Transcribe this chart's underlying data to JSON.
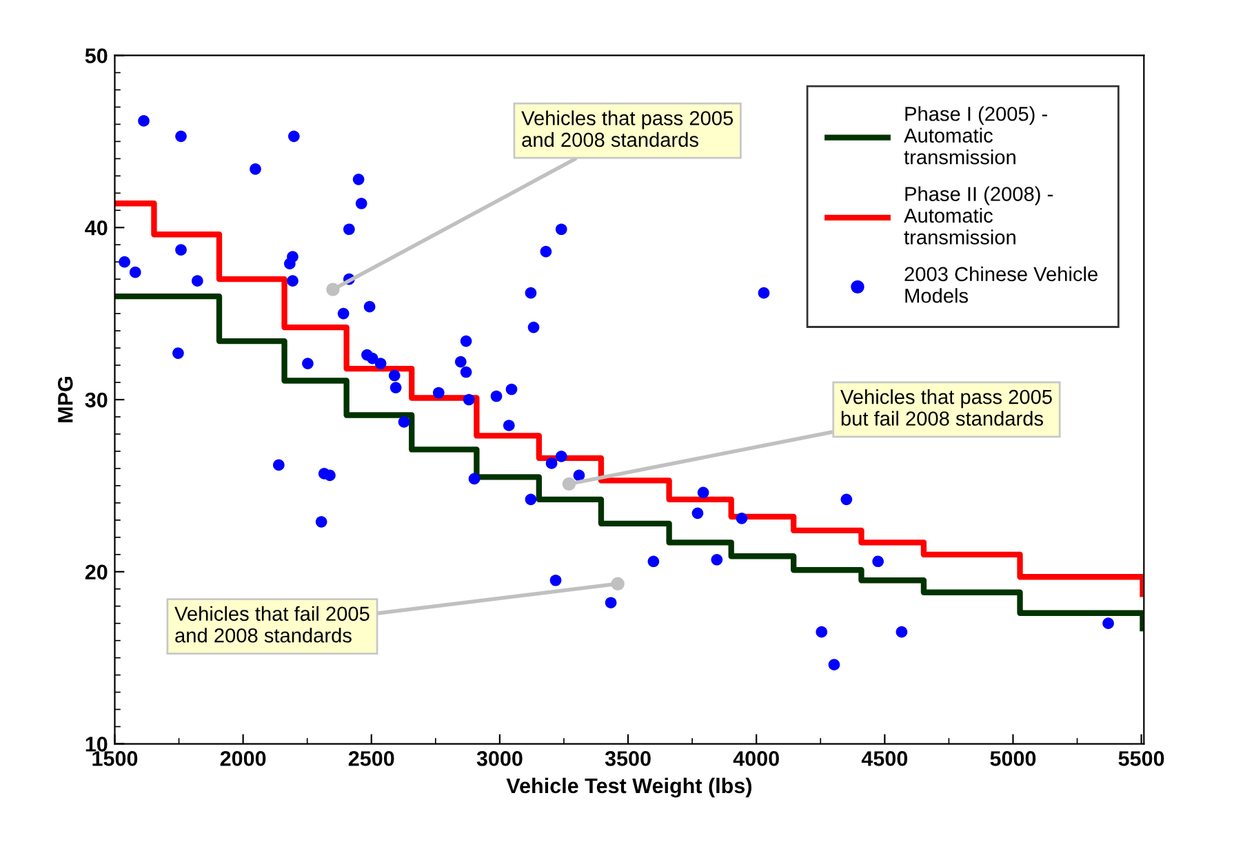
{
  "chart_data": {
    "type": "scatter",
    "xlabel": "Vehicle Test Weight (lbs)",
    "ylabel": "MPG",
    "xlim": [
      1500,
      5510
    ],
    "ylim": [
      10,
      50
    ],
    "xticks": [
      1500,
      2000,
      2500,
      3000,
      3500,
      4000,
      4500,
      5000,
      5500
    ],
    "yticks": [
      10,
      20,
      30,
      40,
      50
    ],
    "grid": false,
    "legend": "top right",
    "series": [
      {
        "name": "Phase I (2005) -\nAutomatic\ntransmission",
        "type": "step",
        "color": "#003300",
        "x": [
          1500,
          1907,
          2161,
          2403,
          2657,
          2910,
          3153,
          3395,
          3660,
          3902,
          4145,
          4409,
          4652,
          5027,
          5505
        ],
        "values": [
          36.0,
          33.4,
          31.1,
          29.1,
          27.1,
          25.5,
          24.2,
          22.8,
          21.7,
          20.9,
          20.1,
          19.5,
          18.8,
          17.6,
          16.7
        ]
      },
      {
        "name": "Phase II (2008) -\nAutomatic\ntransmission",
        "type": "step",
        "color": "#ff0000",
        "x": [
          1500,
          1653,
          1907,
          2161,
          2403,
          2657,
          2910,
          3153,
          3395,
          3660,
          3902,
          4145,
          4409,
          4652,
          5027,
          5505
        ],
        "values": [
          41.4,
          39.6,
          37.0,
          34.2,
          31.8,
          30.1,
          27.9,
          26.6,
          25.3,
          24.2,
          23.2,
          22.4,
          21.7,
          21.0,
          19.7,
          18.7
        ]
      },
      {
        "name": "2003 Chinese Vehicle\nModels",
        "color": "#0000ff",
        "marker": "circle",
        "x": [
          1613,
          1758,
          2198,
          2048,
          2450,
          2461,
          2413,
          1758,
          1538,
          1580,
          1822,
          2193,
          2182,
          2193,
          2413,
          2391,
          2493,
          1747,
          2252,
          2483,
          2504,
          2536,
          2590,
          2869,
          2848,
          2869,
          2762,
          2595,
          2627,
          2139,
          2338,
          2316,
          2305,
          3240,
          3180,
          3121,
          3132,
          2880,
          2987,
          3046,
          3036,
          2901,
          3121,
          3202,
          3240,
          3309,
          3218,
          3433,
          3599,
          3793,
          3771,
          3846,
          4029,
          3943,
          4351,
          4474,
          4254,
          4303,
          4566,
          5371
        ],
        "values": [
          46.2,
          45.3,
          45.3,
          43.4,
          42.8,
          41.4,
          39.9,
          38.7,
          38.0,
          37.4,
          36.9,
          38.3,
          37.9,
          36.9,
          37.0,
          35.0,
          35.4,
          32.7,
          32.1,
          32.6,
          32.4,
          32.1,
          31.4,
          33.4,
          32.2,
          31.6,
          30.4,
          30.7,
          28.7,
          26.2,
          25.6,
          25.7,
          22.9,
          39.9,
          38.6,
          36.2,
          34.2,
          30.0,
          30.2,
          30.6,
          28.5,
          25.4,
          24.2,
          26.3,
          26.7,
          25.6,
          19.5,
          18.2,
          20.6,
          24.6,
          23.4,
          20.7,
          36.2,
          23.1,
          24.2,
          20.6,
          16.5,
          14.6,
          16.5,
          17.0
        ]
      }
    ],
    "annotations": [
      {
        "text": "Vehicles that pass 2005\nand 2008 standards",
        "x": 2350,
        "y": 36.4
      },
      {
        "text": "Vehicles that pass 2005\nbut fail 2008 standards",
        "x": 3270,
        "y": 25.1
      },
      {
        "text": "Vehicles that fail 2005\nand 2008 standards",
        "x": 3460,
        "y": 19.3
      }
    ]
  }
}
